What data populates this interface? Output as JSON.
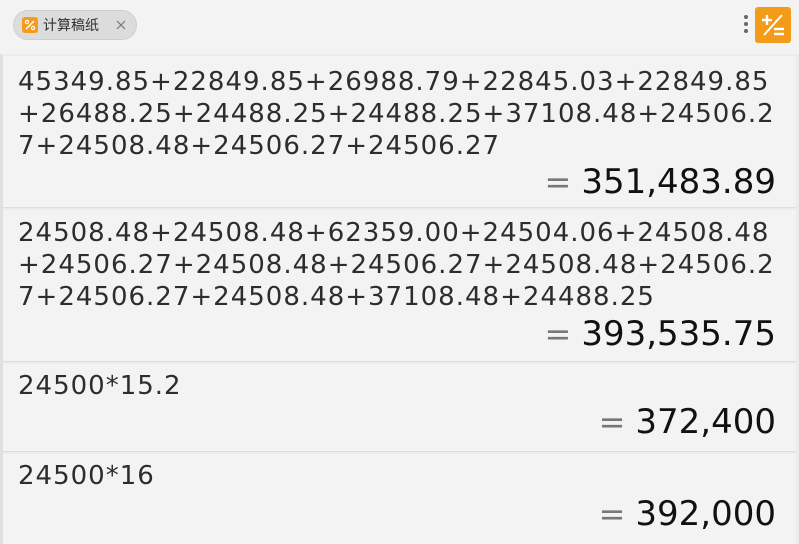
{
  "tab": {
    "title": "计算稿纸"
  },
  "entries": [
    {
      "expression": "45349.85+22849.85+26988.79+22845.03+22849.85+26488.25+24488.25+24488.25+37108.48+24506.27+24508.48+24506.27+24506.27",
      "equals": "=",
      "result": "351,483.89"
    },
    {
      "expression": "24508.48+24508.48+62359.00+24504.06+24508.48+24506.27+24508.48+24506.27+24508.48+24506.27+24506.27+24508.48+37108.48+24488.25",
      "equals": "=",
      "result": "393,535.75"
    },
    {
      "expression": "24500*15.2",
      "equals": "=",
      "result": "372,400"
    },
    {
      "expression": "24500*16",
      "equals": "=",
      "result": "392,000"
    }
  ],
  "colors": {
    "accent": "#f39c1a",
    "background": "#ececec",
    "card": "#f3f3f3"
  },
  "icons": {
    "tab_icon": "percent-icon",
    "tab_close": "close-icon",
    "more": "vertical-dots-icon",
    "new": "plus-minus-icon"
  }
}
